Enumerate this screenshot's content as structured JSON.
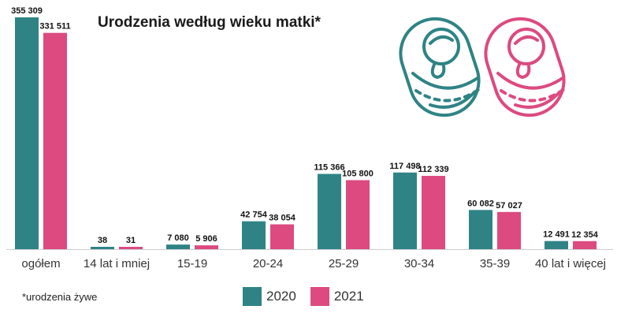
{
  "title": "Urodzenia według wieku matki*",
  "footnote": "*urodzenia żywe",
  "colors": {
    "s2020": "#2f8385",
    "s2021": "#dc4a80"
  },
  "icons": [
    "baby-icon",
    "baby-icon"
  ],
  "legend": {
    "position": "bottom-center"
  },
  "chart_data": {
    "type": "bar",
    "title": "Urodzenia według wieku matki*",
    "categories": [
      "ogółem",
      "14 lat i mniej",
      "15-19",
      "20-24",
      "25-29",
      "30-34",
      "35-39",
      "40 lat i więcej"
    ],
    "series": [
      {
        "name": "2020",
        "values": [
          355309,
          38,
          7080,
          42754,
          115366,
          117498,
          60082,
          12491
        ],
        "labels": [
          "355 309",
          "38",
          "7 080",
          "42 754",
          "115 366",
          "117 498",
          "60 082",
          "12 491"
        ]
      },
      {
        "name": "2021",
        "values": [
          331511,
          31,
          5906,
          38054,
          105800,
          112339,
          57027,
          12354
        ],
        "labels": [
          "331 511",
          "31",
          "5 906",
          "38 054",
          "105 800",
          "112 339",
          "57 027",
          "12 354"
        ]
      }
    ],
    "ylim": [
      0,
      355309
    ],
    "grid": false,
    "xlabel": "",
    "ylabel": ""
  }
}
